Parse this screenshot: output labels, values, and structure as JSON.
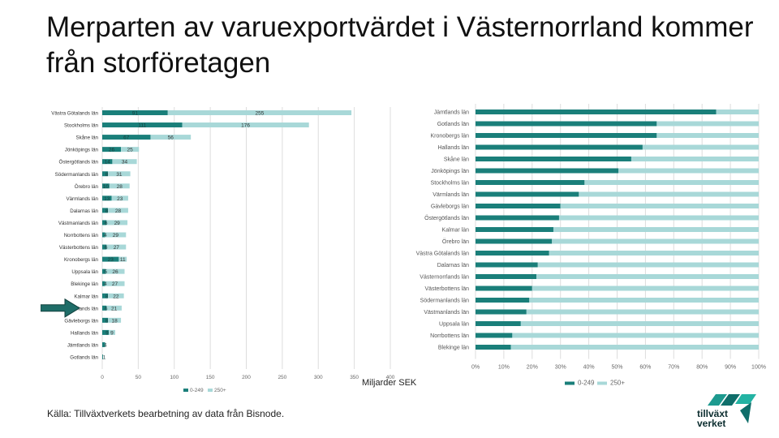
{
  "title": "Merparten av varuexportvärdet i Västernorrland kommer från storföretagen",
  "unit_label": "Miljarder SEK",
  "source": "Källa: Tillväxtverkets bearbetning av data från Bisnode.",
  "logo": {
    "line1": "tillväxt",
    "line2": "verket"
  },
  "colors": {
    "dark": "#1a7f7a",
    "light": "#a8d8d8",
    "highlight": "#1f6d68",
    "grid": "#dddddd",
    "axis_text": "#666666"
  },
  "chart_data": [
    {
      "type": "bar",
      "orientation": "horizontal",
      "stacked": true,
      "categories": [
        "Västra Götalands län",
        "Stockholms län",
        "Skåne län",
        "Jönköpings län",
        "Östergötlands län",
        "Södermanlands län",
        "Örebro län",
        "Värmlands län",
        "Dalarnas län",
        "Västmanlands län",
        "Norrbottens län",
        "Västerbottens län",
        "Kronobergs län",
        "Uppsala län",
        "Blekinge län",
        "Kalmar län",
        "Västernorrlands län",
        "Gävleborgs län",
        "Hallands län",
        "Jämtlands län",
        "Gotlands län"
      ],
      "series": [
        {
          "name": "0-249",
          "values": [
            91,
            111,
            67,
            26,
            14,
            8,
            10,
            13,
            8,
            6,
            4,
            6,
            23,
            5,
            4,
            8,
            6,
            8,
            9,
            4,
            1
          ]
        },
        {
          "name": "250+",
          "values": [
            255,
            176,
            56,
            25,
            34,
            31,
            28,
            23,
            28,
            29,
            29,
            27,
            11,
            26,
            27,
            22,
            21,
            18,
            9,
            0,
            0
          ]
        }
      ],
      "xticks": [
        "0",
        "50",
        "100",
        "150",
        "200",
        "250",
        "300",
        "350",
        "400"
      ],
      "xlim": [
        0,
        400
      ],
      "highlight": "Västernorrlands län",
      "legend_position": "bottom"
    },
    {
      "type": "bar",
      "orientation": "horizontal",
      "stacked": true,
      "percent": true,
      "categories": [
        "Jämtlands län",
        "Gotlands län",
        "Kronobergs län",
        "Hallands län",
        "Skåne län",
        "Jönköpings län",
        "Stockholms län",
        "Värmlands län",
        "Gävleborgs län",
        "Östergötlands län",
        "Kalmar län",
        "Örebro län",
        "Västra Götalands län",
        "Dalarnas län",
        "Västernorrlands län",
        "Västerbottens län",
        "Södermanlands län",
        "Västmanlands län",
        "Uppsala län",
        "Norrbottens län",
        "Blekinge län"
      ],
      "series": [
        {
          "name": "0-249",
          "values": [
            85,
            64,
            64,
            59,
            55,
            50.5,
            38.5,
            36.5,
            30,
            29.5,
            27.5,
            27,
            26,
            22,
            21.5,
            20,
            19,
            18,
            16,
            13,
            12.5
          ]
        },
        {
          "name": "250+",
          "values": [
            15,
            36,
            36,
            41,
            45,
            49.5,
            61.5,
            63.5,
            70,
            70.5,
            72.5,
            73,
            74,
            78,
            78.5,
            80,
            81,
            82,
            84,
            87,
            87.5
          ]
        }
      ],
      "xticks": [
        "0%",
        "10%",
        "20%",
        "30%",
        "40%",
        "50%",
        "60%",
        "70%",
        "80%",
        "90%",
        "100%"
      ],
      "xlim": [
        0,
        100
      ],
      "highlight": "Västernorrlands län",
      "legend_position": "bottom"
    }
  ]
}
